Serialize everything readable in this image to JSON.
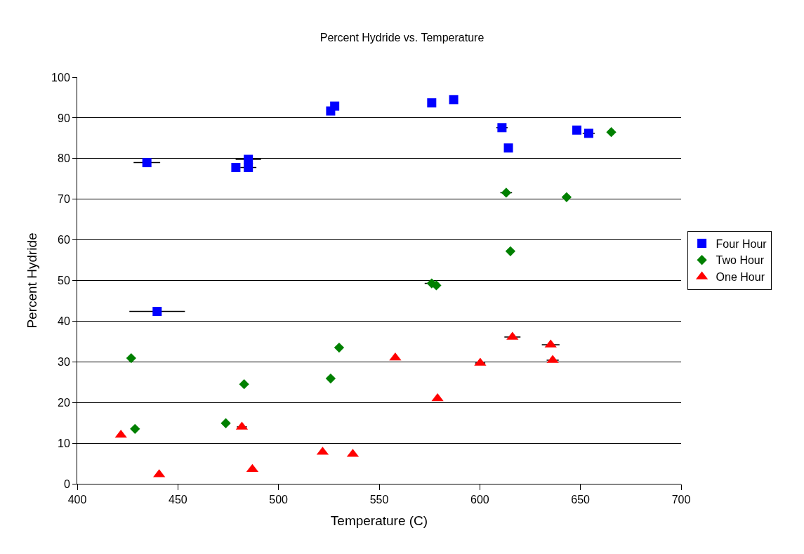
{
  "chart_data": {
    "type": "scatter",
    "title": "Percent Hydride vs. Temperature",
    "xlabel": "Temperature (C)",
    "ylabel": "Percent Hydride",
    "xlim": [
      400,
      700
    ],
    "xticks": [
      400,
      450,
      500,
      550,
      600,
      650,
      700
    ],
    "ylim": [
      0,
      100
    ],
    "yticks": [
      0,
      10,
      20,
      30,
      40,
      50,
      60,
      70,
      80,
      90,
      100
    ],
    "grid": "y",
    "legend": "right",
    "series": [
      {
        "name": "Four Hour",
        "color": "#0000ff",
        "marker": "square",
        "x": [
          434.6,
          439.7,
          478.8,
          485.0,
          485.0,
          525.9,
          527.9,
          576.1,
          587.0,
          611.0,
          614.2,
          648.2,
          654.1
        ],
        "values": [
          79.0,
          42.4,
          77.8,
          79.8,
          77.8,
          91.7,
          92.9,
          93.7,
          94.5,
          87.6,
          82.6,
          87.0,
          86.2
        ],
        "xerrors": [
          6.6,
          13.8,
          null,
          6.3,
          4,
          null,
          null,
          null,
          null,
          2.8,
          null,
          null,
          3
        ]
      },
      {
        "name": "Two Hour",
        "color": "#008000",
        "marker": "diamond",
        "x": [
          426.8,
          428.7,
          473.8,
          482.9,
          525.9,
          530.1,
          576.1,
          578.4,
          613.1,
          615.2,
          643.1,
          665.3
        ],
        "values": [
          30.9,
          13.5,
          14.9,
          24.5,
          25.9,
          33.5,
          49.3,
          48.8,
          71.6,
          57.2,
          70.5,
          86.5
        ],
        "xerrors": [
          null,
          null,
          null,
          null,
          null,
          null,
          3.5,
          null,
          2.9,
          null,
          null,
          null
        ]
      },
      {
        "name": "One Hour",
        "color": "#ff0000",
        "marker": "triangle",
        "x": [
          421.7,
          440.7,
          481.8,
          487.0,
          521.9,
          536.9,
          558.0,
          579.0,
          600.2,
          616.2,
          635.2,
          636.2
        ],
        "values": [
          12.0,
          2.3,
          14.0,
          3.6,
          7.8,
          7.3,
          31.0,
          21.0,
          29.7,
          36.1,
          34.2,
          30.4
        ],
        "xerrors": [
          null,
          null,
          2.5,
          null,
          null,
          null,
          null,
          null,
          2.5,
          4,
          4.4,
          3
        ]
      }
    ]
  }
}
